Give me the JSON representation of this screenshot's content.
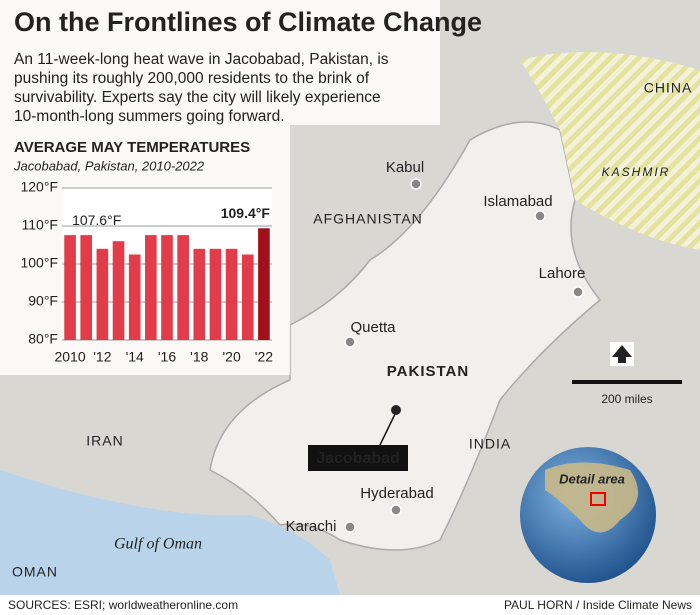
{
  "title": "On the Frontlines of Climate Change",
  "intro": [
    "An 11-week-long heat wave in Jacobabad, Pakistan, is",
    "pushing its roughly 200,000 residents to the brink of",
    "survivability. Experts say the city will likely experience",
    "10-month-long summers going forward."
  ],
  "chart_data": {
    "type": "bar",
    "title": "AVERAGE MAY TEMPERATURES",
    "subtitle": "Jacobabad, Pakistan, 2010-2022",
    "categories": [
      "2010",
      null,
      "'12",
      null,
      "'14",
      null,
      "'16",
      null,
      "'18",
      null,
      "'20",
      null,
      "'22"
    ],
    "values": [
      107.6,
      107.6,
      104,
      106,
      102.5,
      107.6,
      107.6,
      107.6,
      104,
      104,
      104,
      102.5,
      109.4
    ],
    "value_labels": [
      "107.6°F",
      null,
      null,
      null,
      null,
      null,
      null,
      null,
      null,
      null,
      null,
      null,
      "109.4°F"
    ],
    "colors": [
      "#e23b4a",
      "#e23b4a",
      "#e23b4a",
      "#e23b4a",
      "#e23b4a",
      "#e23b4a",
      "#e23b4a",
      "#e23b4a",
      "#e23b4a",
      "#e23b4a",
      "#e23b4a",
      "#e23b4a",
      "#a3101c"
    ],
    "ylim": [
      80,
      120
    ],
    "yticks": [
      {
        "value": 80,
        "label": "80°F"
      },
      {
        "value": 90,
        "label": "90°F"
      },
      {
        "value": 100,
        "label": "100°F"
      },
      {
        "value": 110,
        "label": "110°F"
      },
      {
        "value": 120,
        "label": "120°F"
      }
    ],
    "grid": true
  },
  "map": {
    "places": [
      "Kabul",
      "Islamabad",
      "Lahore",
      "Quetta",
      "Hyderabad",
      "Karachi"
    ],
    "countries": [
      "AFGHANISTAN",
      "PAKISTAN",
      "IRAN",
      "INDIA",
      "CHINA",
      "OMAN"
    ],
    "region": "KASHMIR",
    "sea": "Gulf of Oman",
    "highlight": "Jacobabad",
    "scale_label": "200 miles",
    "inset_label": "Detail area"
  },
  "sources": "SOURCES: ESRI; worldweatheronline.com",
  "credit": "PAUL HORN / Inside Climate News"
}
